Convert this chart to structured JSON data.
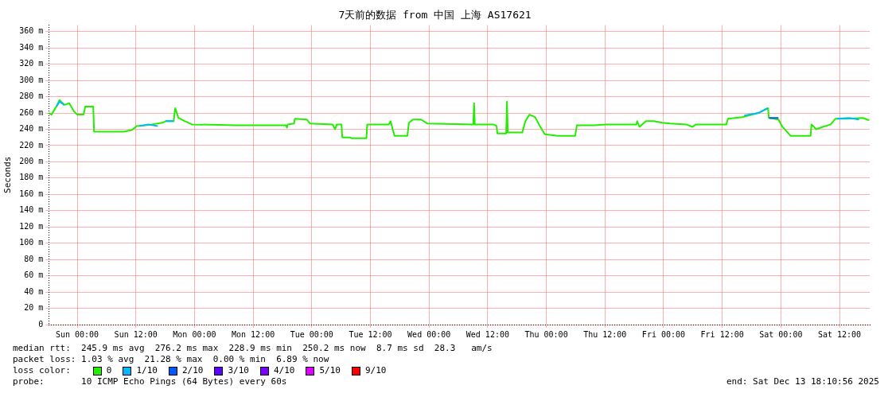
{
  "chart_data": {
    "type": "line",
    "title": "7天前的数据 from 中国 上海 AS17621",
    "ylabel": "Seconds",
    "xlim": [
      "2025-12-06T18:11",
      "2025-12-13T18:11"
    ],
    "xticks": [
      {
        "value": "2025-12-07T00:00",
        "label": "Sun 00:00"
      },
      {
        "value": "2025-12-07T12:00",
        "label": "Sun 12:00"
      },
      {
        "value": "2025-12-08T00:00",
        "label": "Mon 00:00"
      },
      {
        "value": "2025-12-08T12:00",
        "label": "Mon 12:00"
      },
      {
        "value": "2025-12-09T00:00",
        "label": "Tue 00:00"
      },
      {
        "value": "2025-12-09T12:00",
        "label": "Tue 12:00"
      },
      {
        "value": "2025-12-10T00:00",
        "label": "Wed 00:00"
      },
      {
        "value": "2025-12-10T12:00",
        "label": "Wed 12:00"
      },
      {
        "value": "2025-12-11T00:00",
        "label": "Thu 00:00"
      },
      {
        "value": "2025-12-11T12:00",
        "label": "Thu 12:00"
      },
      {
        "value": "2025-12-12T00:00",
        "label": "Fri 00:00"
      },
      {
        "value": "2025-12-12T12:00",
        "label": "Fri 12:00"
      },
      {
        "value": "2025-12-13T00:00",
        "label": "Sat 00:00"
      },
      {
        "value": "2025-12-13T12:00",
        "label": "Sat 12:00"
      }
    ],
    "ylim": [
      0,
      368
    ],
    "yticks": [
      0,
      {
        "value": 20,
        "label": "20 m"
      },
      {
        "value": 40,
        "label": "40 m"
      },
      {
        "value": 60,
        "label": "60 m"
      },
      {
        "value": 80,
        "label": "80 m"
      },
      {
        "value": 100,
        "label": "100 m"
      },
      {
        "value": 120,
        "label": "120 m"
      },
      {
        "value": 140,
        "label": "140 m"
      },
      {
        "value": 160,
        "label": "160 m"
      },
      {
        "value": 180,
        "label": "180 m"
      },
      {
        "value": 200,
        "label": "200 m"
      },
      {
        "value": 220,
        "label": "220 m"
      },
      {
        "value": 240,
        "label": "240 m"
      },
      {
        "value": 260,
        "label": "260 m"
      },
      {
        "value": 280,
        "label": "280 m"
      },
      {
        "value": 300,
        "label": "300 m"
      },
      {
        "value": 320,
        "label": "320 m"
      },
      {
        "value": 340,
        "label": "340 m"
      },
      {
        "value": 360,
        "label": "360 m"
      }
    ],
    "grid": true,
    "legend": "bottom",
    "marker": "none",
    "line_style": "solid",
    "series": [
      {
        "name": "0",
        "color": "#22ee00",
        "x": [
          "2025-12-06T18:12",
          "2025-12-06T18:44",
          "2025-12-06T19:44",
          "2025-12-06T20:23",
          "2025-12-06T21:22",
          "2025-12-06T22:22",
          "2025-12-06T23:20",
          "2025-12-07T00:00",
          "2025-12-07T01:19",
          "2025-12-07T01:38",
          "2025-12-07T03:17",
          "2025-12-07T03:27",
          "2025-12-07T09:32",
          "2025-12-07T11:11",
          "2025-12-07T12:10",
          "2025-12-07T15:17",
          "2025-12-07T17:26",
          "2025-12-07T18:05",
          "2025-12-07T19:44",
          "2025-12-07T20:04",
          "2025-12-07T20:43",
          "2025-12-07T22:02",
          "2025-12-07T23:31",
          "2025-12-08T08:33",
          "2025-12-08T18:44",
          "2025-12-08T18:55",
          "2025-12-08T19:04",
          "2025-12-08T20:23",
          "2025-12-08T20:33",
          "2025-12-08T23:01",
          "2025-12-08T23:40",
          "2025-12-09T04:17",
          "2025-12-09T04:46",
          "2025-12-09T05:06",
          "2025-12-09T06:05",
          "2025-12-09T06:15",
          "2025-12-09T07:53",
          "2025-12-09T08:04",
          "2025-12-09T11:11",
          "2025-12-09T11:21",
          "2025-12-09T15:47",
          "2025-12-09T16:07",
          "2025-12-09T16:56",
          "2025-12-09T19:34",
          "2025-12-09T19:53",
          "2025-12-09T20:43",
          "2025-12-09T22:22",
          "2025-12-09T23:41",
          "2025-12-10T09:03",
          "2025-12-10T09:13",
          "2025-12-10T09:22",
          "2025-12-10T13:10",
          "2025-12-10T13:49",
          "2025-12-10T13:59",
          "2025-12-10T15:47",
          "2025-12-10T15:57",
          "2025-12-10T16:07",
          "2025-12-10T19:04",
          "2025-12-10T19:44",
          "2025-12-10T20:33",
          "2025-12-10T21:42",
          "2025-12-10T22:41",
          "2025-12-10T23:41",
          "2025-12-11T02:19",
          "2025-12-11T05:55",
          "2025-12-11T06:15",
          "2025-12-11T09:42",
          "2025-12-11T12:10",
          "2025-12-11T18:25",
          "2025-12-11T18:35",
          "2025-12-11T19:04",
          "2025-12-11T20:23",
          "2025-12-11T22:02",
          "2025-12-11T23:41",
          "2025-12-12T01:19",
          "2025-12-12T04:37",
          "2025-12-12T05:56",
          "2025-12-12T06:35",
          "2025-12-12T12:50",
          "2025-12-12T13:10",
          "2025-12-12T16:07",
          "2025-12-12T19:24",
          "2025-12-12T21:23",
          "2025-12-12T21:32",
          "2025-12-12T23:31",
          "2025-12-13T00:20",
          "2025-12-13T01:59",
          "2025-12-13T06:05",
          "2025-12-13T06:16",
          "2025-12-13T07:14",
          "2025-12-13T08:34",
          "2025-12-13T10:12",
          "2025-12-13T11:11",
          "2025-12-13T13:29",
          "2025-12-13T16:47",
          "2025-12-13T18:05"
        ],
        "values": [
          260,
          258,
          268,
          276,
          270,
          272,
          262,
          258,
          258,
          268,
          268,
          237,
          237,
          239,
          244,
          246,
          248,
          250,
          250,
          266,
          254,
          250,
          246,
          245,
          245,
          242,
          246,
          247,
          253,
          252,
          247,
          246,
          240,
          246,
          246,
          230,
          230,
          229,
          229,
          246,
          246,
          250,
          232,
          232,
          248,
          252,
          252,
          247,
          246,
          272,
          246,
          246,
          244,
          235,
          235,
          274,
          236,
          236,
          250,
          258,
          255,
          244,
          234,
          232,
          232,
          245,
          245,
          246,
          246,
          250,
          243,
          250,
          250,
          248,
          247,
          246,
          243,
          246,
          246,
          253,
          255,
          260,
          266,
          254,
          252,
          243,
          232,
          232,
          246,
          240,
          243,
          246,
          253,
          253,
          254,
          251
        ]
      },
      {
        "name": "1/10",
        "color": "#00b8ff",
        "x": [
          "2025-12-06T19:44",
          "2025-12-06T20:23",
          "2025-12-06T21:22",
          "2025-12-06T22:00",
          "2025-12-07T12:48",
          "2025-12-07T14:30",
          "2025-12-07T16:30",
          "2025-12-07T17:00",
          "2025-12-07T18:05",
          "2025-12-07T19:44",
          "2025-12-07T20:00",
          "2025-12-12T16:30",
          "2025-12-12T19:24",
          "2025-12-12T21:18",
          "2025-12-12T21:24",
          "2025-12-13T11:30",
          "2025-12-13T14:00",
          "2025-12-13T16:00"
        ],
        "values": [
          268,
          274,
          270,
          null,
          244,
          246,
          244,
          null,
          250,
          250,
          null,
          257,
          260,
          266,
          null,
          253,
          254,
          252
        ]
      },
      {
        "name": "2/10",
        "color": "#0059ff",
        "x": [
          "2025-12-12T21:36",
          "2025-12-12T23:30"
        ],
        "values": [
          254,
          254
        ]
      },
      {
        "name": "3/10",
        "color": "#5e00ff"
      },
      {
        "name": "4/10",
        "color": "#7e00ff"
      },
      {
        "name": "5/10",
        "color": "#dd00ff"
      },
      {
        "name": "9/10",
        "color": "#ff0000"
      }
    ],
    "annotations": [
      "median rtt:  245.9 ms avg  276.2 ms max  228.9 ms min  250.2 ms now  8.7 ms sd  28.3   am/s",
      "packet loss: 1.03 % avg  21.28 % max  0.00 % min  6.89 % now",
      "loss color:",
      "probe:       10 ICMP Echo Pings (64 Bytes) every 60s",
      "end: Sat Dec 13 18:10:56 2025"
    ]
  }
}
